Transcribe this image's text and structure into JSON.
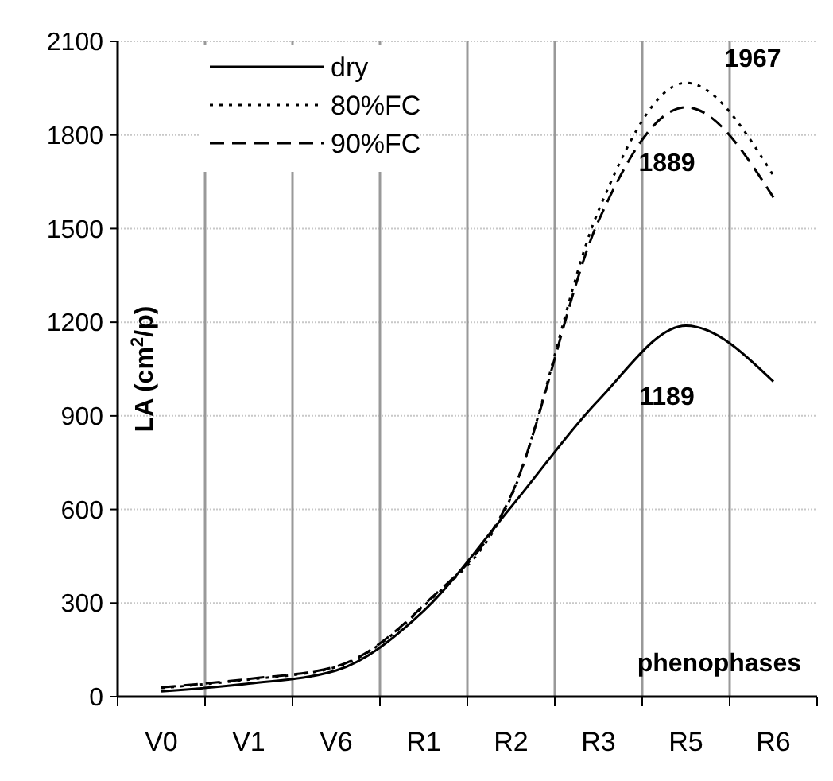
{
  "chart_data": {
    "type": "line",
    "xlabel": "phenophases",
    "ylabel": "LA (cm$^{2}$/p)",
    "categories": [
      "V0",
      "V1",
      "V6",
      "R1",
      "R2",
      "R3",
      "R5",
      "R6"
    ],
    "ylim": [
      0,
      2100
    ],
    "yticks": [
      0,
      300,
      600,
      900,
      1200,
      1500,
      1800,
      2100
    ],
    "grid": true,
    "legend": "top left",
    "marker": "none",
    "series": [
      {
        "name": "dry",
        "color": "#000000",
        "line_style": "solid",
        "values": [
          17,
          42,
          84,
          275,
          608,
          950,
          1189,
          1010
        ]
      },
      {
        "name": "80%FC",
        "color": "#000000",
        "line_style": "dotted",
        "values": [
          28,
          55,
          95,
          290,
          640,
          1558,
          1967,
          1670
        ]
      },
      {
        "name": "90%FC",
        "color": "#000000",
        "line_style": "dashed",
        "values": [
          30,
          57,
          97,
          293,
          645,
          1525,
          1889,
          1600
        ]
      }
    ],
    "annotations": [
      {
        "text": "1967",
        "x": "R5",
        "y": 1967
      },
      {
        "text": "1889",
        "x": "R5",
        "y": 1889
      },
      {
        "text": "1189",
        "x": "R5",
        "y": 1189
      }
    ]
  }
}
